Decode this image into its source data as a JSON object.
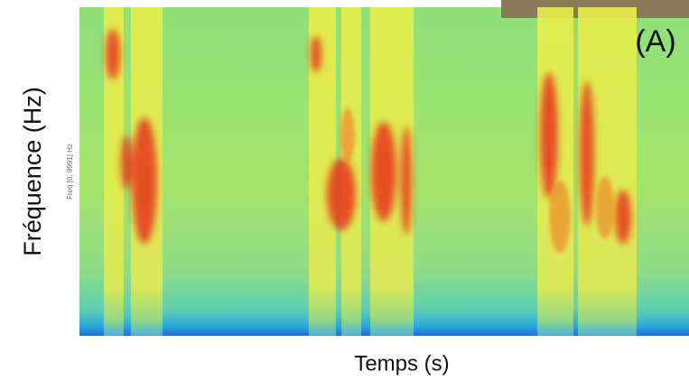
{
  "figure": {
    "panel_label": "(A)",
    "x_label": "Temps (s)",
    "y_label": "Fréquence (Hz)",
    "inner_axis_label": "Freq [0, 9991] Hz"
  }
}
